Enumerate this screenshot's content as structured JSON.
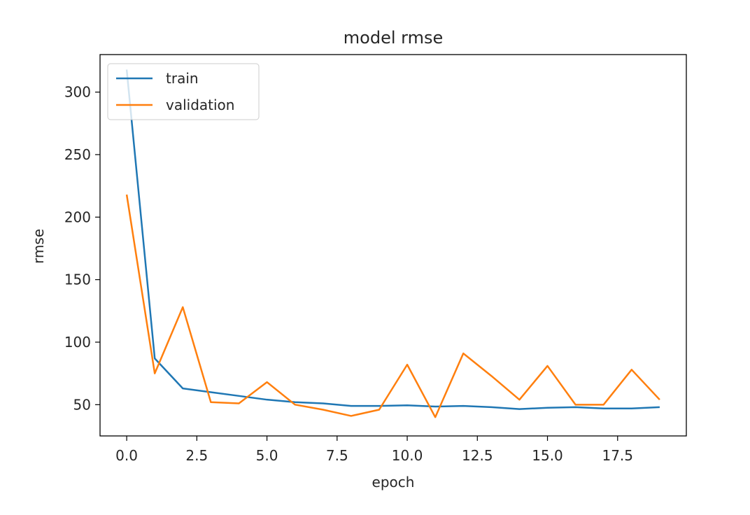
{
  "chart_data": {
    "type": "line",
    "title": "model rmse",
    "xlabel": "epoch",
    "ylabel": "rmse",
    "xlim": [
      -0.95,
      19.95
    ],
    "ylim": [
      25,
      330
    ],
    "xticks": [
      0.0,
      2.5,
      5.0,
      7.5,
      10.0,
      12.5,
      15.0,
      17.5
    ],
    "xtick_labels": [
      "0.0",
      "2.5",
      "5.0",
      "7.5",
      "10.0",
      "12.5",
      "15.0",
      "17.5"
    ],
    "yticks": [
      50,
      100,
      150,
      200,
      250,
      300
    ],
    "ytick_labels": [
      "50",
      "100",
      "150",
      "200",
      "250",
      "300"
    ],
    "grid": false,
    "legend": "top-left",
    "x": [
      0,
      1,
      2,
      3,
      4,
      5,
      6,
      7,
      8,
      9,
      10,
      11,
      12,
      13,
      14,
      15,
      16,
      17,
      18,
      19
    ],
    "series": [
      {
        "name": "train",
        "color": "#1f77b4",
        "values": [
          318,
          87,
          63,
          60,
          57,
          54,
          52,
          51,
          49,
          49,
          49.5,
          48.5,
          49,
          48,
          46.5,
          47.5,
          48,
          47,
          47,
          48
        ]
      },
      {
        "name": "validation",
        "color": "#ff7f0e",
        "values": [
          218,
          75,
          128,
          52,
          51,
          68,
          50,
          46,
          41,
          46,
          82,
          40,
          91,
          73,
          54,
          81,
          50,
          50,
          78,
          54
        ]
      }
    ]
  }
}
